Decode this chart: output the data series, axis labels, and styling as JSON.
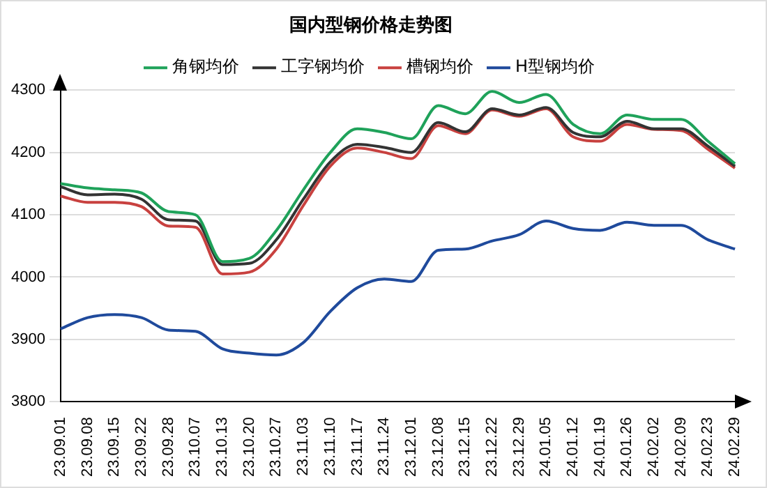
{
  "chart_data": {
    "type": "line",
    "title": "国内型钢价格走势图",
    "categories": [
      "23.09.01",
      "23.09.08",
      "23.09.15",
      "23.09.22",
      "23.09.28",
      "23.10.07",
      "23.10.13",
      "23.10.20",
      "23.10.27",
      "23.11.03",
      "23.11.10",
      "23.11.17",
      "23.11.24",
      "23.12.01",
      "23.12.08",
      "23.12.15",
      "23.12.22",
      "23.12.29",
      "24.01.05",
      "24.01.12",
      "24.01.19",
      "24.01.26",
      "24.02.02",
      "24.02.09",
      "24.02.23",
      "24.02.29"
    ],
    "series": [
      {
        "name": "角钢均价",
        "color": "#1fa25a",
        "values": [
          4150,
          4143,
          4140,
          4135,
          4105,
          4100,
          4025,
          4030,
          4075,
          4140,
          4200,
          4238,
          4232,
          4222,
          4275,
          4262,
          4298,
          4280,
          4293,
          4245,
          4230,
          4260,
          4253,
          4253,
          4218,
          4182
        ]
      },
      {
        "name": "工字钢均价",
        "color": "#333333",
        "values": [
          4145,
          4132,
          4133,
          4125,
          4092,
          4090,
          4020,
          4022,
          4060,
          4125,
          4185,
          4213,
          4208,
          4200,
          4248,
          4233,
          4270,
          4260,
          4272,
          4232,
          4225,
          4250,
          4238,
          4238,
          4210,
          4178
        ]
      },
      {
        "name": "槽钢均价",
        "color": "#c8413f",
        "values": [
          4130,
          4120,
          4120,
          4113,
          4082,
          4080,
          4005,
          4008,
          4045,
          4115,
          4178,
          4207,
          4200,
          4190,
          4243,
          4230,
          4268,
          4258,
          4270,
          4225,
          4218,
          4245,
          4237,
          4235,
          4205,
          4175
        ]
      },
      {
        "name": "H型钢均价",
        "color": "#1f4a9c",
        "values": [
          3917,
          3935,
          3940,
          3935,
          3915,
          3913,
          3885,
          3878,
          3875,
          3895,
          3945,
          3983,
          3997,
          3993,
          4043,
          4045,
          4058,
          4068,
          4090,
          4078,
          4075,
          4088,
          4083,
          4083,
          4060,
          4045
        ]
      }
    ],
    "ylim": [
      3800,
      4300
    ],
    "yticks": [
      3800,
      3900,
      4000,
      4100,
      4200,
      4300
    ],
    "grid": "y",
    "legend": "top",
    "marker": "none",
    "line_style": "solid"
  }
}
